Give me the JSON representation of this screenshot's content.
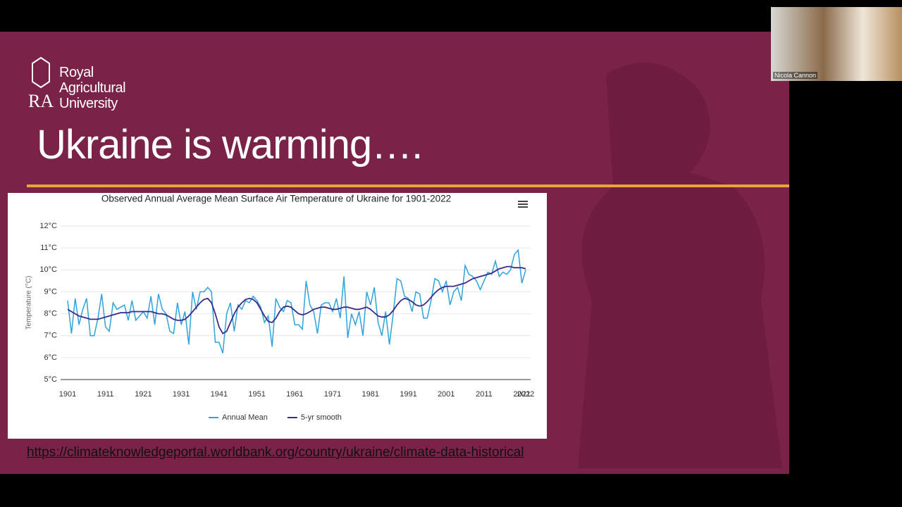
{
  "logo": [
    "Royal",
    "Agricultural",
    "University"
  ],
  "slide_title": "Ukraine is warming….",
  "link": "https://climateknowledgeportal.worldbank.org/country/ukraine/climate-data-historical",
  "webcam_label": "Nicola Cannon",
  "chart_data": {
    "type": "line",
    "title": "Observed Annual Average Mean Surface Air Temperature of Ukraine for 1901-2022",
    "y_label": "Temperature (°C)",
    "x": [
      1901,
      1902,
      1903,
      1904,
      1905,
      1906,
      1907,
      1908,
      1909,
      1910,
      1911,
      1912,
      1913,
      1914,
      1915,
      1916,
      1917,
      1918,
      1919,
      1920,
      1921,
      1922,
      1923,
      1924,
      1925,
      1926,
      1927,
      1928,
      1929,
      1930,
      1931,
      1932,
      1933,
      1934,
      1935,
      1936,
      1937,
      1938,
      1939,
      1940,
      1941,
      1942,
      1943,
      1944,
      1945,
      1946,
      1947,
      1948,
      1949,
      1950,
      1951,
      1952,
      1953,
      1954,
      1955,
      1956,
      1957,
      1958,
      1959,
      1960,
      1961,
      1962,
      1963,
      1964,
      1965,
      1966,
      1967,
      1968,
      1969,
      1970,
      1971,
      1972,
      1973,
      1974,
      1975,
      1976,
      1977,
      1978,
      1979,
      1980,
      1981,
      1982,
      1983,
      1984,
      1985,
      1986,
      1987,
      1988,
      1989,
      1990,
      1991,
      1992,
      1993,
      1994,
      1995,
      1996,
      1997,
      1998,
      1999,
      2000,
      2001,
      2002,
      2003,
      2004,
      2005,
      2006,
      2007,
      2008,
      2009,
      2010,
      2011,
      2012,
      2013,
      2014,
      2015,
      2016,
      2017,
      2018,
      2019,
      2020,
      2021,
      2022
    ],
    "series": [
      {
        "name": "Annual Mean",
        "color": "#2ea3dc",
        "values": [
          8.6,
          7.1,
          8.7,
          7.5,
          8.2,
          8.7,
          7.0,
          7.0,
          7.8,
          8.9,
          7.4,
          7.2,
          8.5,
          8.2,
          8.3,
          8.4,
          7.7,
          8.6,
          7.7,
          7.9,
          8.1,
          7.8,
          8.8,
          7.5,
          8.9,
          8.2,
          8.0,
          7.2,
          7.1,
          8.5,
          7.5,
          8.1,
          6.6,
          9.0,
          8.2,
          9.0,
          9.0,
          9.2,
          9.0,
          6.7,
          6.7,
          6.2,
          8.0,
          8.5,
          7.2,
          8.4,
          8.2,
          8.6,
          8.5,
          8.8,
          8.6,
          8.3,
          7.6,
          7.9,
          6.5,
          8.7,
          8.3,
          8.1,
          8.6,
          8.5,
          7.5,
          7.5,
          7.3,
          9.5,
          8.4,
          8.1,
          7.1,
          8.4,
          8.5,
          8.5,
          8.1,
          8.7,
          7.8,
          9.7,
          6.9,
          8.0,
          7.5,
          8.1,
          7.0,
          9.0,
          8.4,
          9.2,
          7.6,
          7.0,
          8.1,
          6.6,
          8.0,
          9.6,
          9.5,
          8.8,
          8.7,
          8.1,
          9.0,
          8.9,
          7.8,
          7.8,
          8.6,
          9.6,
          9.5,
          9.0,
          9.5,
          8.4,
          9.0,
          9.2,
          8.6,
          10.2,
          9.8,
          9.7,
          9.5,
          9.1,
          9.5,
          9.9,
          9.8,
          10.4,
          9.7,
          9.9,
          9.8,
          10.0,
          10.7,
          10.9,
          9.4,
          10.0
        ]
      },
      {
        "name": "5-yr smooth",
        "color": "#3b2a8c",
        "values": [
          8.2,
          8.1,
          8.0,
          7.9,
          7.85,
          7.8,
          7.75,
          7.75,
          7.75,
          7.8,
          7.85,
          7.9,
          7.95,
          8.0,
          8.05,
          8.05,
          8.05,
          8.1,
          8.1,
          8.1,
          8.1,
          8.1,
          8.1,
          8.05,
          8.0,
          8.0,
          7.95,
          7.85,
          7.75,
          7.7,
          7.7,
          7.75,
          7.9,
          8.1,
          8.3,
          8.5,
          8.65,
          8.7,
          8.5,
          8.0,
          7.4,
          7.1,
          7.2,
          7.6,
          8.0,
          8.3,
          8.5,
          8.65,
          8.7,
          8.65,
          8.5,
          8.2,
          7.9,
          7.65,
          7.6,
          7.8,
          8.1,
          8.3,
          8.35,
          8.3,
          8.15,
          8.0,
          7.95,
          8.0,
          8.1,
          8.2,
          8.25,
          8.3,
          8.3,
          8.25,
          8.2,
          8.2,
          8.25,
          8.3,
          8.3,
          8.25,
          8.2,
          8.2,
          8.25,
          8.3,
          8.2,
          8.05,
          7.9,
          7.85,
          7.85,
          7.95,
          8.15,
          8.4,
          8.6,
          8.7,
          8.65,
          8.55,
          8.4,
          8.35,
          8.4,
          8.55,
          8.75,
          8.95,
          9.1,
          9.2,
          9.25,
          9.25,
          9.25,
          9.3,
          9.35,
          9.4,
          9.5,
          9.6,
          9.65,
          9.7,
          9.75,
          9.8,
          9.85,
          9.95,
          10.05,
          10.1,
          10.15,
          10.15,
          10.1,
          10.1,
          10.1,
          10.05
        ]
      }
    ],
    "xlim": [
      1901,
      2022
    ],
    "xticks": [
      1901,
      1911,
      1921,
      1931,
      1941,
      1951,
      1961,
      1971,
      1981,
      1991,
      2001,
      2011,
      2021,
      2022
    ],
    "ylim": [
      5,
      12
    ],
    "yticks": [
      {
        "value": 5,
        "label": "5°C"
      },
      {
        "value": 6,
        "label": "6°C"
      },
      {
        "value": 7,
        "label": "7°C"
      },
      {
        "value": 8,
        "label": "8°C"
      },
      {
        "value": 9,
        "label": "9°C"
      },
      {
        "value": 10,
        "label": "10°C"
      },
      {
        "value": 11,
        "label": "11°C"
      },
      {
        "value": 12,
        "label": "12°C"
      }
    ],
    "grid": true,
    "legend": "bottom"
  }
}
